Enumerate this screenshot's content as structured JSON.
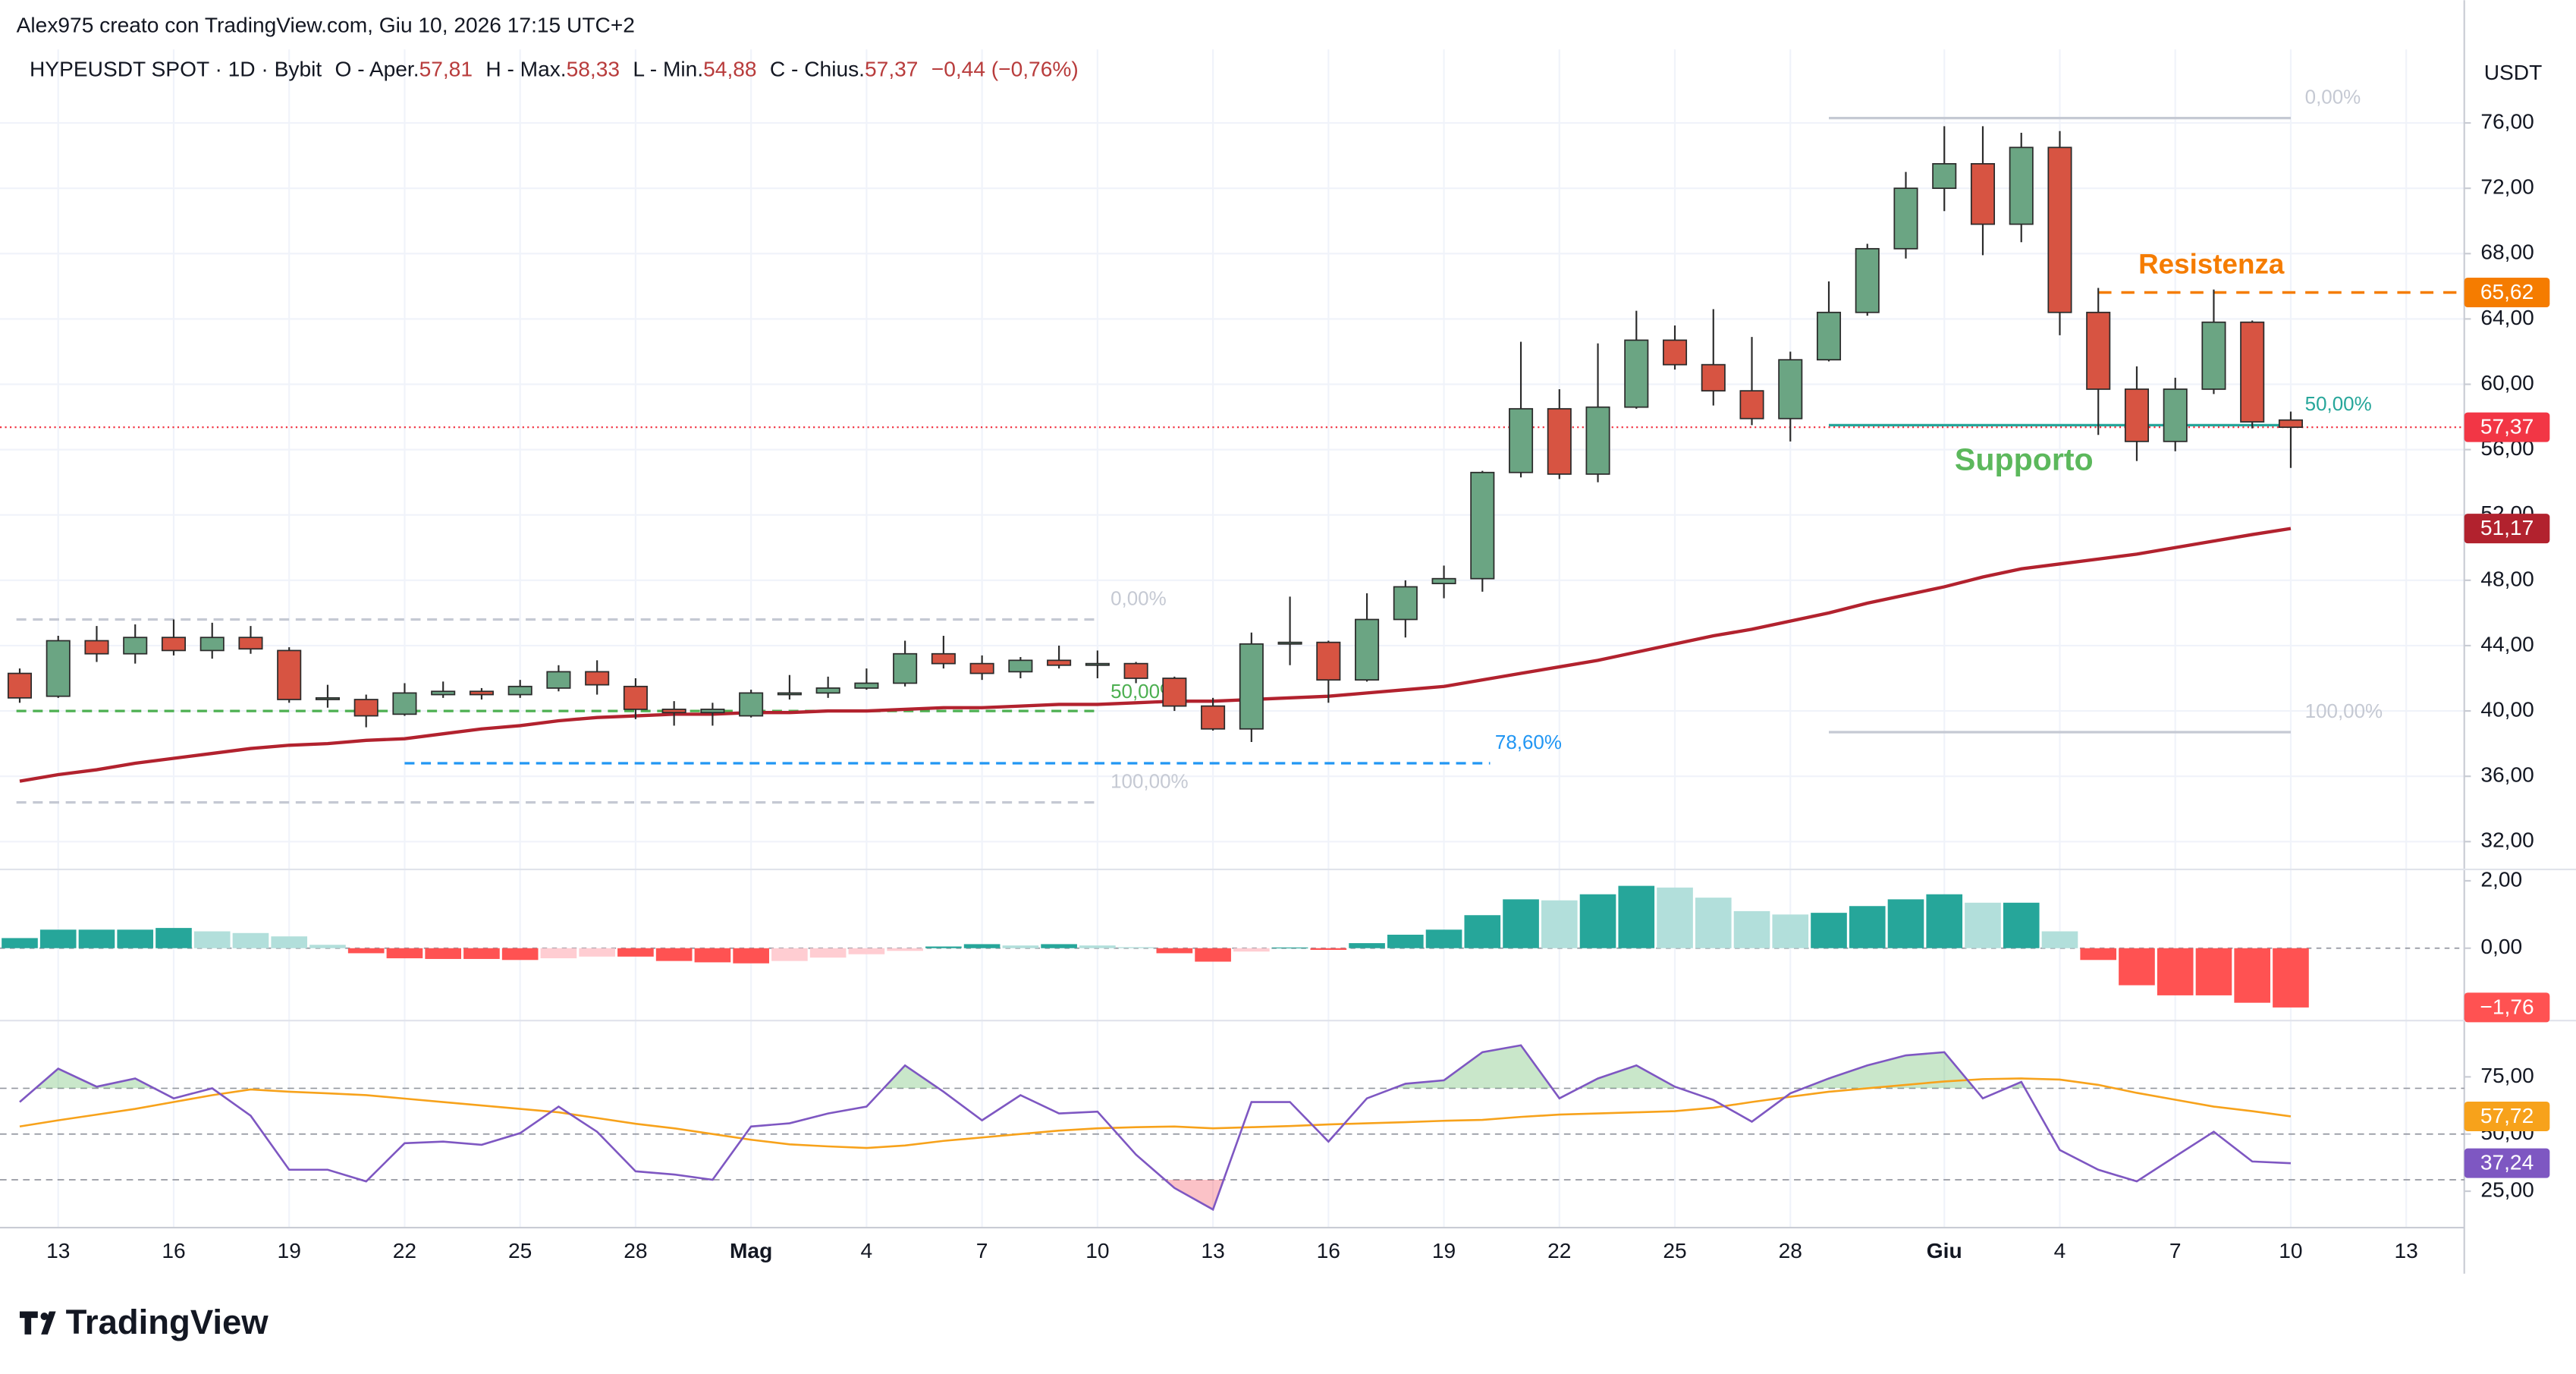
{
  "header": {
    "creator": "Alex975 creato con TradingView.com, Giu 10, 2026 17:15 UTC+2",
    "currency": "USDT",
    "brand": "TradingView"
  },
  "legend": {
    "symbol": "HYPEUSDT SPOT · 1D · Bybit",
    "open_label": "O - Aper.",
    "open": "57,81",
    "high_label": "H - Max.",
    "high": "58,33",
    "low_label": "L - Min.",
    "low": "54,88",
    "close_label": "C - Chius.",
    "close": "57,37",
    "change": "−0,44 (−0,76%)"
  },
  "chart_data": [
    {
      "type": "candlestick",
      "categories": [
        null,
        "13",
        null,
        null,
        "16",
        null,
        null,
        "19",
        null,
        null,
        "22",
        null,
        null,
        "25",
        null,
        null,
        "28",
        null,
        null,
        "Mag",
        null,
        null,
        "4",
        null,
        null,
        "7",
        null,
        null,
        "10",
        null,
        null,
        "13",
        null,
        null,
        "16",
        null,
        null,
        "19",
        null,
        null,
        "22",
        null,
        null,
        "25",
        null,
        null,
        "28",
        null,
        null,
        null,
        "Giu",
        null,
        null,
        "4",
        null,
        null,
        "7",
        null,
        null,
        "10",
        null,
        null,
        "13"
      ],
      "open": [
        42.3,
        40.9,
        44.3,
        43.5,
        44.5,
        43.7,
        44.5,
        43.7,
        40.7,
        40.7,
        39.8,
        41.0,
        41.2,
        41.0,
        41.4,
        42.4,
        41.5,
        40.1,
        39.9,
        39.7,
        41.0,
        41.1,
        41.4,
        41.7,
        43.5,
        42.9,
        42.4,
        43.1,
        42.8,
        42.9,
        42.0,
        40.3,
        38.9,
        44.1,
        44.2,
        41.9,
        45.6,
        47.8,
        48.1,
        54.6,
        58.5,
        54.5,
        58.6,
        62.7,
        61.2,
        59.6,
        57.9,
        61.5,
        64.4,
        68.3,
        72.0,
        73.5,
        69.8,
        74.5,
        64.4,
        59.7,
        56.5,
        59.7,
        63.8,
        57.81,
        null,
        null,
        null
      ],
      "high": [
        42.6,
        44.6,
        45.2,
        45.3,
        45.6,
        45.4,
        45.2,
        43.9,
        41.6,
        41.0,
        41.7,
        41.8,
        41.4,
        41.9,
        42.8,
        43.1,
        42.0,
        40.6,
        40.5,
        41.3,
        42.2,
        42.1,
        42.6,
        44.3,
        44.6,
        43.4,
        43.3,
        44.0,
        43.7,
        43.0,
        42.1,
        40.8,
        44.8,
        47.0,
        44.3,
        47.2,
        48.0,
        48.9,
        54.7,
        62.6,
        59.7,
        62.5,
        64.5,
        63.6,
        64.6,
        62.9,
        62.0,
        66.3,
        68.6,
        73.0,
        75.8,
        75.8,
        75.4,
        75.5,
        65.9,
        61.1,
        60.4,
        65.8,
        63.9,
        58.33,
        null,
        null,
        null
      ],
      "low": [
        40.5,
        40.8,
        43.0,
        42.9,
        43.4,
        43.2,
        43.5,
        40.5,
        40.2,
        39.0,
        39.7,
        40.8,
        40.7,
        40.8,
        41.2,
        41.0,
        39.5,
        39.1,
        39.1,
        39.6,
        40.7,
        40.8,
        41.3,
        41.5,
        42.6,
        41.9,
        42.0,
        42.6,
        42.0,
        41.7,
        40.0,
        38.8,
        38.1,
        42.8,
        40.5,
        41.8,
        44.5,
        46.9,
        47.3,
        54.3,
        54.2,
        54.0,
        58.5,
        60.9,
        58.7,
        57.5,
        56.5,
        61.4,
        64.2,
        67.7,
        70.6,
        67.9,
        68.7,
        63.0,
        56.9,
        55.3,
        55.9,
        59.4,
        57.3,
        54.88,
        null,
        null,
        null
      ],
      "close": [
        40.8,
        44.3,
        43.5,
        44.5,
        43.7,
        44.5,
        43.8,
        40.7,
        40.8,
        39.7,
        41.1,
        41.2,
        41.0,
        41.5,
        42.4,
        41.6,
        40.1,
        39.9,
        40.1,
        41.1,
        41.1,
        41.4,
        41.7,
        43.5,
        42.9,
        42.3,
        43.1,
        42.8,
        42.9,
        42.0,
        40.3,
        38.9,
        44.1,
        44.2,
        41.9,
        45.6,
        47.6,
        48.1,
        54.6,
        58.5,
        54.5,
        58.6,
        62.7,
        61.2,
        59.6,
        57.9,
        61.5,
        64.4,
        68.3,
        72.0,
        73.5,
        69.8,
        74.5,
        64.4,
        59.7,
        56.5,
        59.7,
        63.8,
        57.7,
        57.37,
        null,
        null,
        null
      ],
      "colors": {
        "up": "#6ba583",
        "down": "#d75442",
        "border": "#2b2b2b"
      },
      "ma": {
        "color": "#b2222e",
        "last_label": "51,17",
        "values": [
          35.7,
          36.1,
          36.4,
          36.8,
          37.1,
          37.4,
          37.7,
          37.9,
          38.0,
          38.2,
          38.3,
          38.6,
          38.9,
          39.1,
          39.4,
          39.6,
          39.7,
          39.8,
          39.8,
          39.9,
          39.9,
          40.0,
          40.0,
          40.1,
          40.2,
          40.2,
          40.3,
          40.4,
          40.4,
          40.5,
          40.6,
          40.6,
          40.7,
          40.8,
          40.9,
          41.1,
          41.3,
          41.5,
          41.9,
          42.3,
          42.7,
          43.1,
          43.6,
          44.1,
          44.6,
          45.0,
          45.5,
          46.0,
          46.6,
          47.1,
          47.6,
          48.2,
          48.7,
          49.0,
          49.3,
          49.6,
          50.0,
          50.4,
          50.8,
          51.17,
          null,
          null,
          null
        ]
      },
      "price_line": {
        "value": 57.37,
        "label": "57,37",
        "color": "#f23645"
      },
      "resistance": {
        "text": "Resistenza",
        "value": 65.62,
        "label": "65,62",
        "color": "#f57c00"
      },
      "support": {
        "text": "Supporto",
        "color": "#5cb85c"
      },
      "fib_left": {
        "levels": [
          {
            "value": 45.6,
            "label": "0,00%"
          },
          {
            "value": 40.0,
            "label": "50,00%"
          },
          {
            "value": 34.4,
            "label": "100,00%"
          }
        ],
        "extra": {
          "value": 36.8,
          "label": "78,60%",
          "color": "#2196f3"
        }
      },
      "fib_right": {
        "levels": [
          {
            "value": 76.3,
            "label": "0,00%"
          },
          {
            "value": 57.5,
            "label": "50,00%"
          },
          {
            "value": 38.7,
            "label": "100,00%"
          }
        ]
      },
      "fib_colors": {
        "edge": "#c5c9d3",
        "mid": "#4caf50",
        "mid_text": "#26a69a"
      },
      "ylim": [
        30.4,
        80.5
      ],
      "yticks": [
        {
          "value": 32,
          "label": "32,00"
        },
        {
          "value": 36,
          "label": "36,00"
        },
        {
          "value": 40,
          "label": "40,00"
        },
        {
          "value": 44,
          "label": "44,00"
        },
        {
          "value": 48,
          "label": "48,00"
        },
        {
          "value": 52,
          "label": "52,00"
        },
        {
          "value": 56,
          "label": "56,00"
        },
        {
          "value": 60,
          "label": "60,00"
        },
        {
          "value": 64,
          "label": "64,00"
        },
        {
          "value": 68,
          "label": "68,00"
        },
        {
          "value": 72,
          "label": "72,00"
        },
        {
          "value": 76,
          "label": "76,00"
        }
      ],
      "grid": true
    },
    {
      "type": "histogram",
      "values": [
        0.3,
        0.55,
        0.55,
        0.55,
        0.6,
        0.5,
        0.45,
        0.35,
        0.1,
        -0.15,
        -0.3,
        -0.32,
        -0.32,
        -0.35,
        -0.3,
        -0.25,
        -0.25,
        -0.38,
        -0.42,
        -0.45,
        -0.38,
        -0.28,
        -0.18,
        -0.08,
        0.05,
        0.12,
        0.08,
        0.12,
        0.08,
        0.03,
        -0.15,
        -0.4,
        -0.1,
        0.02,
        -0.05,
        0.15,
        0.4,
        0.55,
        0.98,
        1.45,
        1.42,
        1.6,
        1.85,
        1.8,
        1.5,
        1.1,
        1.0,
        1.05,
        1.25,
        1.45,
        1.6,
        1.35,
        1.35,
        0.5,
        -0.35,
        -1.1,
        -1.4,
        -1.4,
        -1.62,
        -1.76,
        null,
        null,
        null
      ],
      "last_label": "−1,76",
      "colors": {
        "grow_above": "#26a69a",
        "fall_above": "#b2dfdb",
        "grow_below": "#ffcdd2",
        "fall_below": "#ff5252"
      },
      "ylim": [
        -2.1,
        2.29
      ],
      "yticks": [
        {
          "value": 0,
          "label": "0,00"
        },
        {
          "value": 2,
          "label": "2,00"
        }
      ]
    },
    {
      "type": "line",
      "series": [
        {
          "color": "#7e57c2",
          "last_label": "37,24",
          "values": [
            64,
            78.6,
            70.7,
            74.3,
            65.6,
            70,
            58,
            34.4,
            34.4,
            29.3,
            46,
            46.7,
            45.3,
            50.4,
            62,
            51,
            33.7,
            32.3,
            30,
            53.3,
            54.7,
            59,
            62,
            80,
            68.5,
            56,
            67,
            59,
            59.8,
            41,
            26.4,
            17,
            64,
            64,
            46.7,
            65.6,
            72,
            73.5,
            85.8,
            88.8,
            65.6,
            74.3,
            80,
            70.7,
            64.9,
            55.4,
            67.8,
            74.3,
            80,
            84.4,
            85.8,
            65.6,
            72.8,
            43,
            34.4,
            29.3,
            40.2,
            51,
            38,
            37.24,
            null,
            null,
            null
          ]
        },
        {
          "color": "#f7a21b",
          "last_label": "57,72",
          "values": [
            53.3,
            56,
            58.5,
            61,
            64,
            67,
            69.5,
            68.5,
            67.8,
            67,
            65.5,
            64,
            62.5,
            61,
            59.5,
            57,
            54.5,
            52.5,
            50,
            47.5,
            45.5,
            44.6,
            43.9,
            45,
            47,
            48.5,
            50,
            51.5,
            52.5,
            53,
            53.3,
            52.5,
            53,
            53.5,
            54.2,
            54.7,
            55.2,
            55.8,
            56.2,
            57.5,
            58.5,
            59,
            59.5,
            60,
            61.5,
            64,
            66.3,
            68.5,
            70,
            71.5,
            73,
            74,
            74.3,
            73.8,
            71.5,
            68,
            65,
            62,
            60,
            57.72,
            null,
            null,
            null
          ]
        }
      ],
      "hlines": [
        70,
        50,
        30
      ],
      "fill_colors": {
        "upper": "#4caf50",
        "lower": "#f23645"
      },
      "ylim": [
        9.8,
        98.9
      ],
      "yticks": [
        {
          "value": 25,
          "label": "25,00"
        },
        {
          "value": 50,
          "label": "50,00"
        },
        {
          "value": 75,
          "label": "75,00"
        }
      ]
    }
  ]
}
